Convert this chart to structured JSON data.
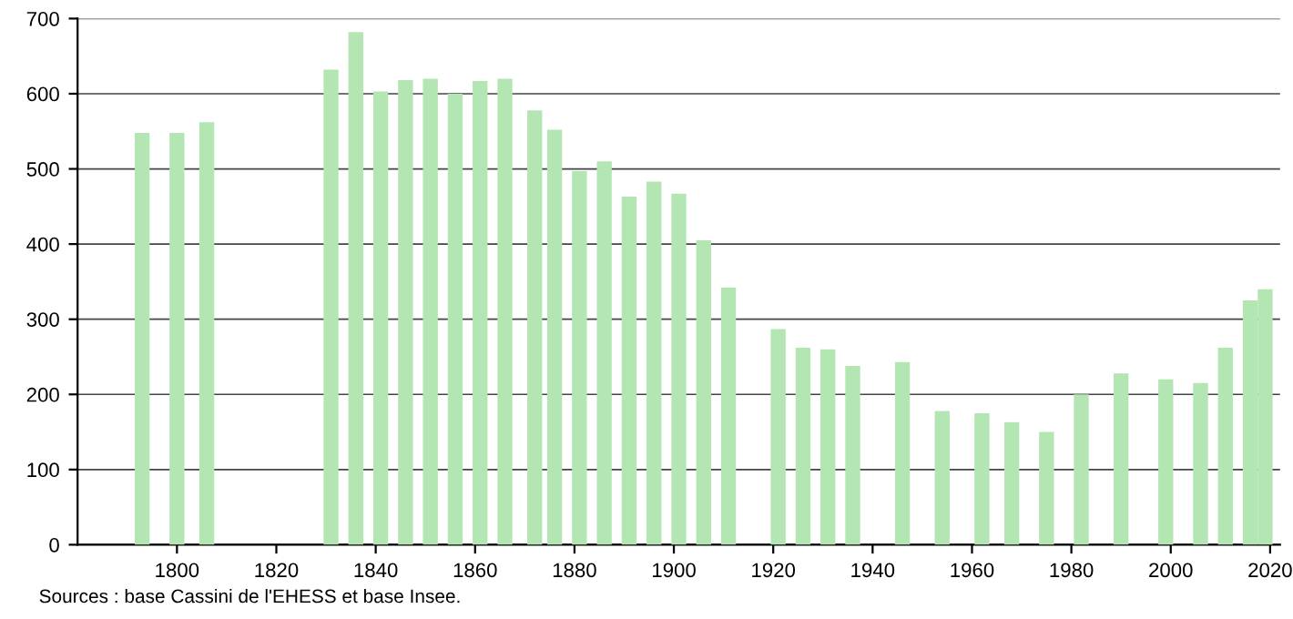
{
  "chart_data": {
    "type": "bar",
    "x": [
      1793,
      1800,
      1806,
      1831,
      1836,
      1841,
      1846,
      1851,
      1856,
      1861,
      1866,
      1872,
      1876,
      1881,
      1886,
      1891,
      1896,
      1901,
      1906,
      1911,
      1921,
      1926,
      1931,
      1936,
      1946,
      1954,
      1962,
      1968,
      1975,
      1982,
      1990,
      1999,
      2006,
      2011,
      2016,
      2019
    ],
    "values": [
      548,
      548,
      562,
      632,
      682,
      603,
      618,
      620,
      600,
      617,
      620,
      578,
      552,
      497,
      510,
      463,
      483,
      467,
      405,
      342,
      287,
      262,
      260,
      238,
      243,
      178,
      175,
      163,
      150,
      200,
      228,
      220,
      215,
      262,
      325,
      340
    ],
    "color": "#b3e6b3",
    "xlim": [
      1780,
      2022
    ],
    "xticks": [
      1800,
      1820,
      1840,
      1860,
      1880,
      1900,
      1920,
      1940,
      1960,
      1980,
      2000,
      2020
    ],
    "ylim": [
      0,
      700
    ],
    "yticks": [
      0,
      100,
      200,
      300,
      400,
      500,
      600,
      700
    ],
    "grid": "y",
    "annotations": [
      "Sources : base Cassini de l'EHESS et base Insee."
    ]
  }
}
